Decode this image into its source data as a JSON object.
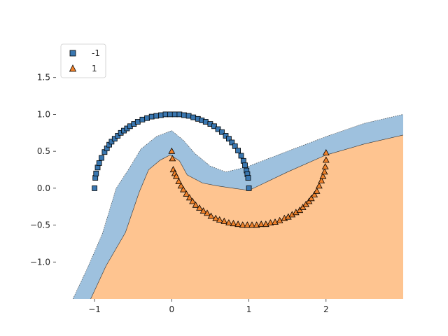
{
  "chart_data": {
    "type": "scatter",
    "title": "",
    "xlabel": "",
    "ylabel": "",
    "xlim": [
      -1.5,
      3.0
    ],
    "ylim": [
      -1.5,
      2.0
    ],
    "x_ticks": [
      -1,
      0,
      1,
      2
    ],
    "x_tick_labels": [
      "−1",
      "0",
      "1",
      "2"
    ],
    "y_ticks": [
      -1.0,
      -0.5,
      0.0,
      0.5,
      1.0,
      1.5
    ],
    "y_tick_labels": [
      "−1.0",
      "−0.5",
      "0.0",
      "0.5",
      "1.0",
      "1.5"
    ],
    "grid": false,
    "legend_position": "top-left",
    "series": [
      {
        "name": "-1",
        "marker": "square",
        "color": "#3a77b0",
        "x": [
          -1.0,
          -0.99,
          -0.98,
          -0.96,
          -0.94,
          -0.91,
          -0.87,
          -0.84,
          -0.81,
          -0.78,
          -0.74,
          -0.7,
          -0.66,
          -0.62,
          -0.58,
          -0.54,
          -0.49,
          -0.44,
          -0.38,
          -0.32,
          -0.26,
          -0.2,
          -0.14,
          -0.08,
          -0.02,
          0.04,
          0.1,
          0.16,
          0.22,
          0.28,
          0.34,
          0.39,
          0.44,
          0.5,
          0.55,
          0.6,
          0.65,
          0.7,
          0.74,
          0.78,
          0.82,
          0.86,
          0.9,
          0.93,
          0.95,
          0.97,
          0.98,
          0.99,
          1.0
        ],
        "y": [
          0.0,
          0.14,
          0.2,
          0.28,
          0.34,
          0.41,
          0.49,
          0.54,
          0.59,
          0.63,
          0.67,
          0.71,
          0.75,
          0.78,
          0.81,
          0.84,
          0.87,
          0.9,
          0.93,
          0.95,
          0.97,
          0.98,
          0.99,
          1.0,
          1.0,
          1.0,
          1.0,
          0.99,
          0.98,
          0.96,
          0.94,
          0.92,
          0.9,
          0.87,
          0.84,
          0.8,
          0.76,
          0.71,
          0.67,
          0.62,
          0.57,
          0.51,
          0.44,
          0.37,
          0.31,
          0.24,
          0.19,
          0.14,
          0.0
        ]
      },
      {
        "name": "1",
        "marker": "triangle",
        "color": "#f0822b",
        "x": [
          0.0,
          0.01,
          0.02,
          0.04,
          0.06,
          0.09,
          0.12,
          0.15,
          0.19,
          0.23,
          0.27,
          0.31,
          0.36,
          0.41,
          0.46,
          0.51,
          0.57,
          0.62,
          0.68,
          0.74,
          0.8,
          0.86,
          0.92,
          0.98,
          1.04,
          1.1,
          1.16,
          1.22,
          1.28,
          1.34,
          1.4,
          1.46,
          1.51,
          1.56,
          1.61,
          1.66,
          1.7,
          1.74,
          1.78,
          1.81,
          1.85,
          1.88,
          1.91,
          1.94,
          1.96,
          1.98,
          1.99,
          2.0,
          2.0
        ],
        "y": [
          0.5,
          0.4,
          0.25,
          0.2,
          0.16,
          0.09,
          0.03,
          -0.02,
          -0.08,
          -0.13,
          -0.18,
          -0.23,
          -0.27,
          -0.31,
          -0.34,
          -0.38,
          -0.41,
          -0.43,
          -0.45,
          -0.47,
          -0.48,
          -0.49,
          -0.5,
          -0.5,
          -0.5,
          -0.5,
          -0.49,
          -0.49,
          -0.47,
          -0.46,
          -0.44,
          -0.41,
          -0.39,
          -0.36,
          -0.33,
          -0.3,
          -0.26,
          -0.22,
          -0.18,
          -0.14,
          -0.09,
          -0.04,
          0.03,
          0.1,
          0.16,
          0.22,
          0.29,
          0.38,
          0.48
        ]
      }
    ],
    "decision_regions": [
      {
        "class": "-1",
        "color": "#9ec1de",
        "boundary": [
          [
            -1.28,
            -1.5
          ],
          [
            -1.1,
            -1.1
          ],
          [
            -0.9,
            -0.62
          ],
          [
            -0.72,
            0.0
          ],
          [
            -0.55,
            0.27
          ],
          [
            -0.4,
            0.53
          ],
          [
            -0.2,
            0.7
          ],
          [
            0.0,
            0.78
          ],
          [
            0.15,
            0.65
          ],
          [
            0.3,
            0.47
          ],
          [
            0.5,
            0.3
          ],
          [
            0.7,
            0.22
          ],
          [
            0.9,
            0.27
          ],
          [
            1.0,
            0.3
          ],
          [
            1.5,
            0.5
          ],
          [
            2.0,
            0.7
          ],
          [
            2.5,
            0.88
          ],
          [
            3.0,
            1.0
          ]
        ]
      },
      {
        "class": "1",
        "color": "#fec490",
        "boundary": [
          [
            -1.05,
            -1.5
          ],
          [
            -0.85,
            -1.05
          ],
          [
            -0.6,
            -0.6
          ],
          [
            -0.42,
            -0.05
          ],
          [
            -0.3,
            0.25
          ],
          [
            -0.15,
            0.38
          ],
          [
            -0.02,
            0.45
          ],
          [
            0.1,
            0.37
          ],
          [
            0.2,
            0.18
          ],
          [
            0.4,
            0.07
          ],
          [
            0.6,
            0.03
          ],
          [
            0.8,
            0.0
          ],
          [
            1.0,
            -0.03
          ],
          [
            1.5,
            0.22
          ],
          [
            2.0,
            0.45
          ],
          [
            2.5,
            0.6
          ],
          [
            3.0,
            0.72
          ]
        ]
      }
    ]
  }
}
